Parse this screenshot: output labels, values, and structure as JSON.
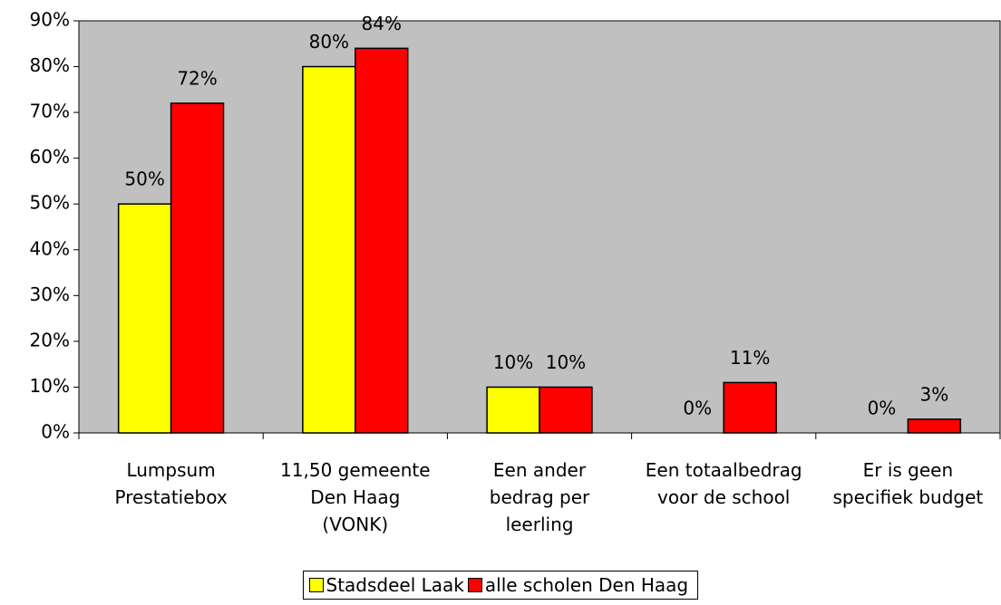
{
  "chart_data": {
    "type": "bar",
    "categories": [
      "Lumpsum\nPrestatiebox",
      "11,50 gemeente\nDen Haag\n(VONK)",
      "Een ander\nbedrag per\nleerling",
      "Een totaalbedrag\nvoor de school",
      "Er is geen\nspecifiek budget"
    ],
    "series": [
      {
        "name": "Stadsdeel Laak",
        "color": "#ffff00",
        "values": [
          50,
          80,
          10,
          0,
          0
        ],
        "value_labels": [
          "50%",
          "80%",
          "10%",
          "0%",
          "0%"
        ]
      },
      {
        "name": "alle scholen Den Haag",
        "color": "#ff0000",
        "values": [
          72,
          84,
          10,
          11,
          3
        ],
        "value_labels": [
          "72%",
          "84%",
          "10%",
          "11%",
          "3%"
        ]
      }
    ],
    "ylim": [
      0,
      90
    ],
    "yticks": [
      {
        "value": 0,
        "label": "0%"
      },
      {
        "value": 10,
        "label": "10%"
      },
      {
        "value": 20,
        "label": "20%"
      },
      {
        "value": 30,
        "label": "30%"
      },
      {
        "value": 40,
        "label": "40%"
      },
      {
        "value": 50,
        "label": "50%"
      },
      {
        "value": 60,
        "label": "60%"
      },
      {
        "value": 70,
        "label": "70%"
      },
      {
        "value": 80,
        "label": "80%"
      },
      {
        "value": 90,
        "label": "90%"
      }
    ],
    "background": "#c0c0c0",
    "legend": "bottom"
  }
}
